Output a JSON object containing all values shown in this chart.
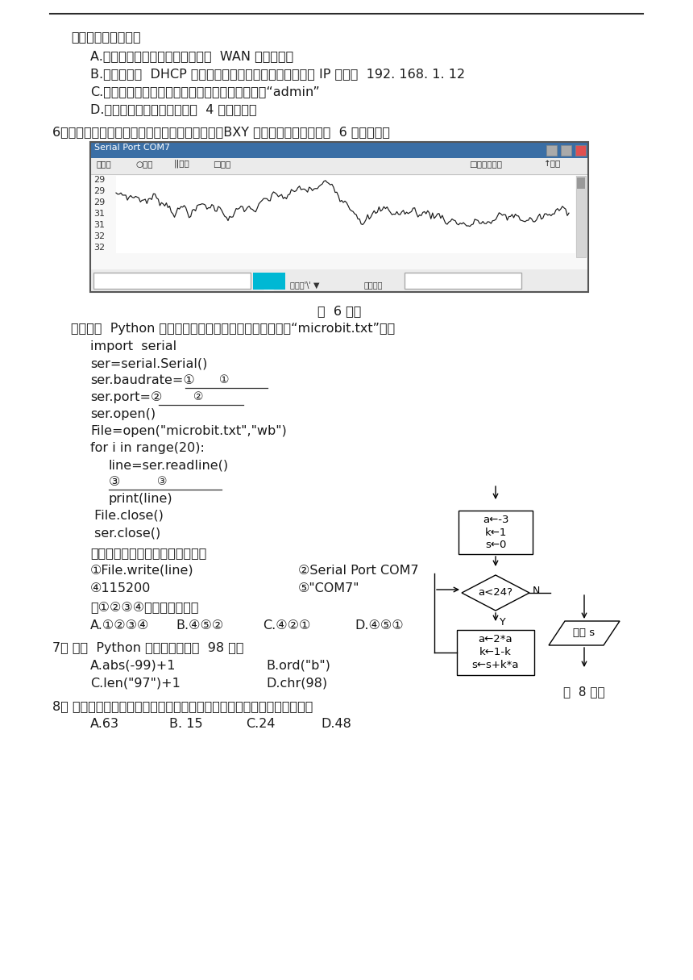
{
  "title_line": "以下说法不正确的是",
  "options_5": [
    "A.使用网线将光猫和无线路由器的  WAN 口进行连接",
    "B.路由器开启  DHCP 功能后，手机连接无线路由器获取的 IP 可能是  192. 168. 1. 12",
    "C.首次登陆路由器管理界面时，用户名和密码均为“admin”",
    "D.此无线路由器最多只能连接  4 台终端设备"
  ],
  "q6_text": "6．某智能终端从串口获取温湿度传感器的数据，BXY 软件运行部分界面如第  6 题图所示。",
  "q6_fig_label": "第  6 题图",
  "q6_desc": "编写以下  Python 代码，获取串口数据并保存到文本文件“microbit.txt”中。",
  "q6_fill_desc": "上述程序段中划线处可选语句为：",
  "q6_result": "则①②③④处的语句依次为",
  "q6_ans_opts": [
    "A.①②③④",
    "B.④⑤②",
    "C.④②①",
    "D.④⑤①"
  ],
  "q7_text": "7． 下列  Python 表达式的値等于  98 的是",
  "q7_opts": [
    "A.abs(-99)+1",
    "B.ord(\"b\")",
    "C.len(\"97\")+1",
    "D.chr(98)"
  ],
  "q8_text": "8． 该算法的部分流程图如图所示，执行该部分流程图后，则输出的结果为",
  "q8_ans_opts": [
    "A.63",
    "B. 15",
    "C.24",
    "D.48"
  ],
  "q8_fig_label": "第  8 题图",
  "bg_color": "#ffffff",
  "text_color": "#1a1a1a"
}
